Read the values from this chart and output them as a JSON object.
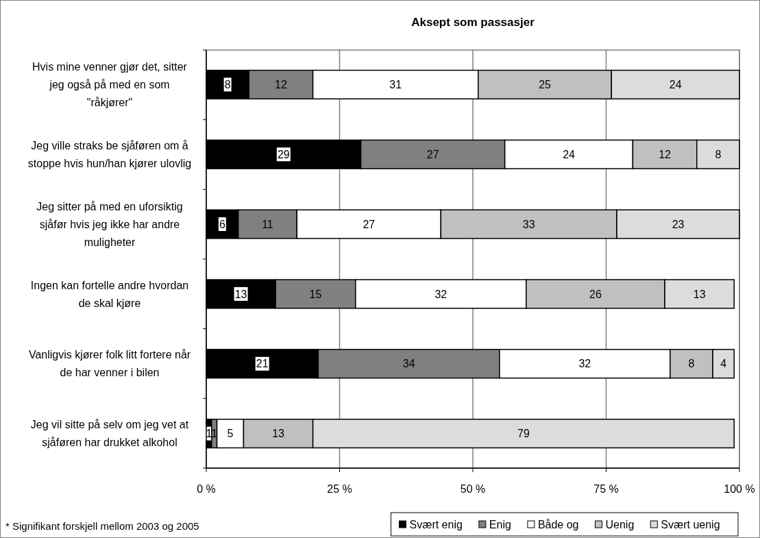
{
  "chart_data": {
    "type": "bar",
    "orientation": "horizontal",
    "stacked": true,
    "title": "Aksept som passasjer",
    "categories": [
      "Hvis mine venner gjør det, sitter jeg også på med en som \"råkjører\"",
      "Jeg ville straks be sjåføren om å stoppe hvis hun/han kjører ulovlig",
      "Jeg sitter på med en uforsiktig sjåfør hvis jeg ikke har andre muligheter",
      "Ingen kan fortelle andre hvordan de skal kjøre",
      "Vanligvis kjører folk litt fortere når de har venner i bilen",
      "Jeg vil sitte på selv om jeg vet at sjåføren har drukket alkohol"
    ],
    "series": [
      {
        "name": "Svært enig",
        "color": "#000000",
        "values": [
          8,
          29,
          6,
          13,
          21,
          1
        ]
      },
      {
        "name": "Enig",
        "color": "#808080",
        "values": [
          12,
          27,
          11,
          15,
          34,
          1
        ]
      },
      {
        "name": "Både og",
        "color": "#ffffff",
        "values": [
          31,
          24,
          27,
          32,
          32,
          5
        ]
      },
      {
        "name": "Uenig",
        "color": "#c0c0c0",
        "values": [
          25,
          12,
          33,
          26,
          8,
          13
        ]
      },
      {
        "name": "Svært  uenig",
        "color": "#dcdcdc",
        "values": [
          24,
          8,
          23,
          13,
          4,
          79
        ]
      }
    ],
    "xlim": [
      0,
      100
    ],
    "xticks": [
      {
        "value": 0,
        "label": "0 %"
      },
      {
        "value": 25,
        "label": "25 %"
      },
      {
        "value": 50,
        "label": "50 %"
      },
      {
        "value": 75,
        "label": "75 %"
      },
      {
        "value": 100,
        "label": "100 %"
      }
    ],
    "grid": "x",
    "legend": "bottom",
    "data_labels": true,
    "annotations": [
      "* Signifikant forskjell mellom 2003 og 2005"
    ]
  }
}
